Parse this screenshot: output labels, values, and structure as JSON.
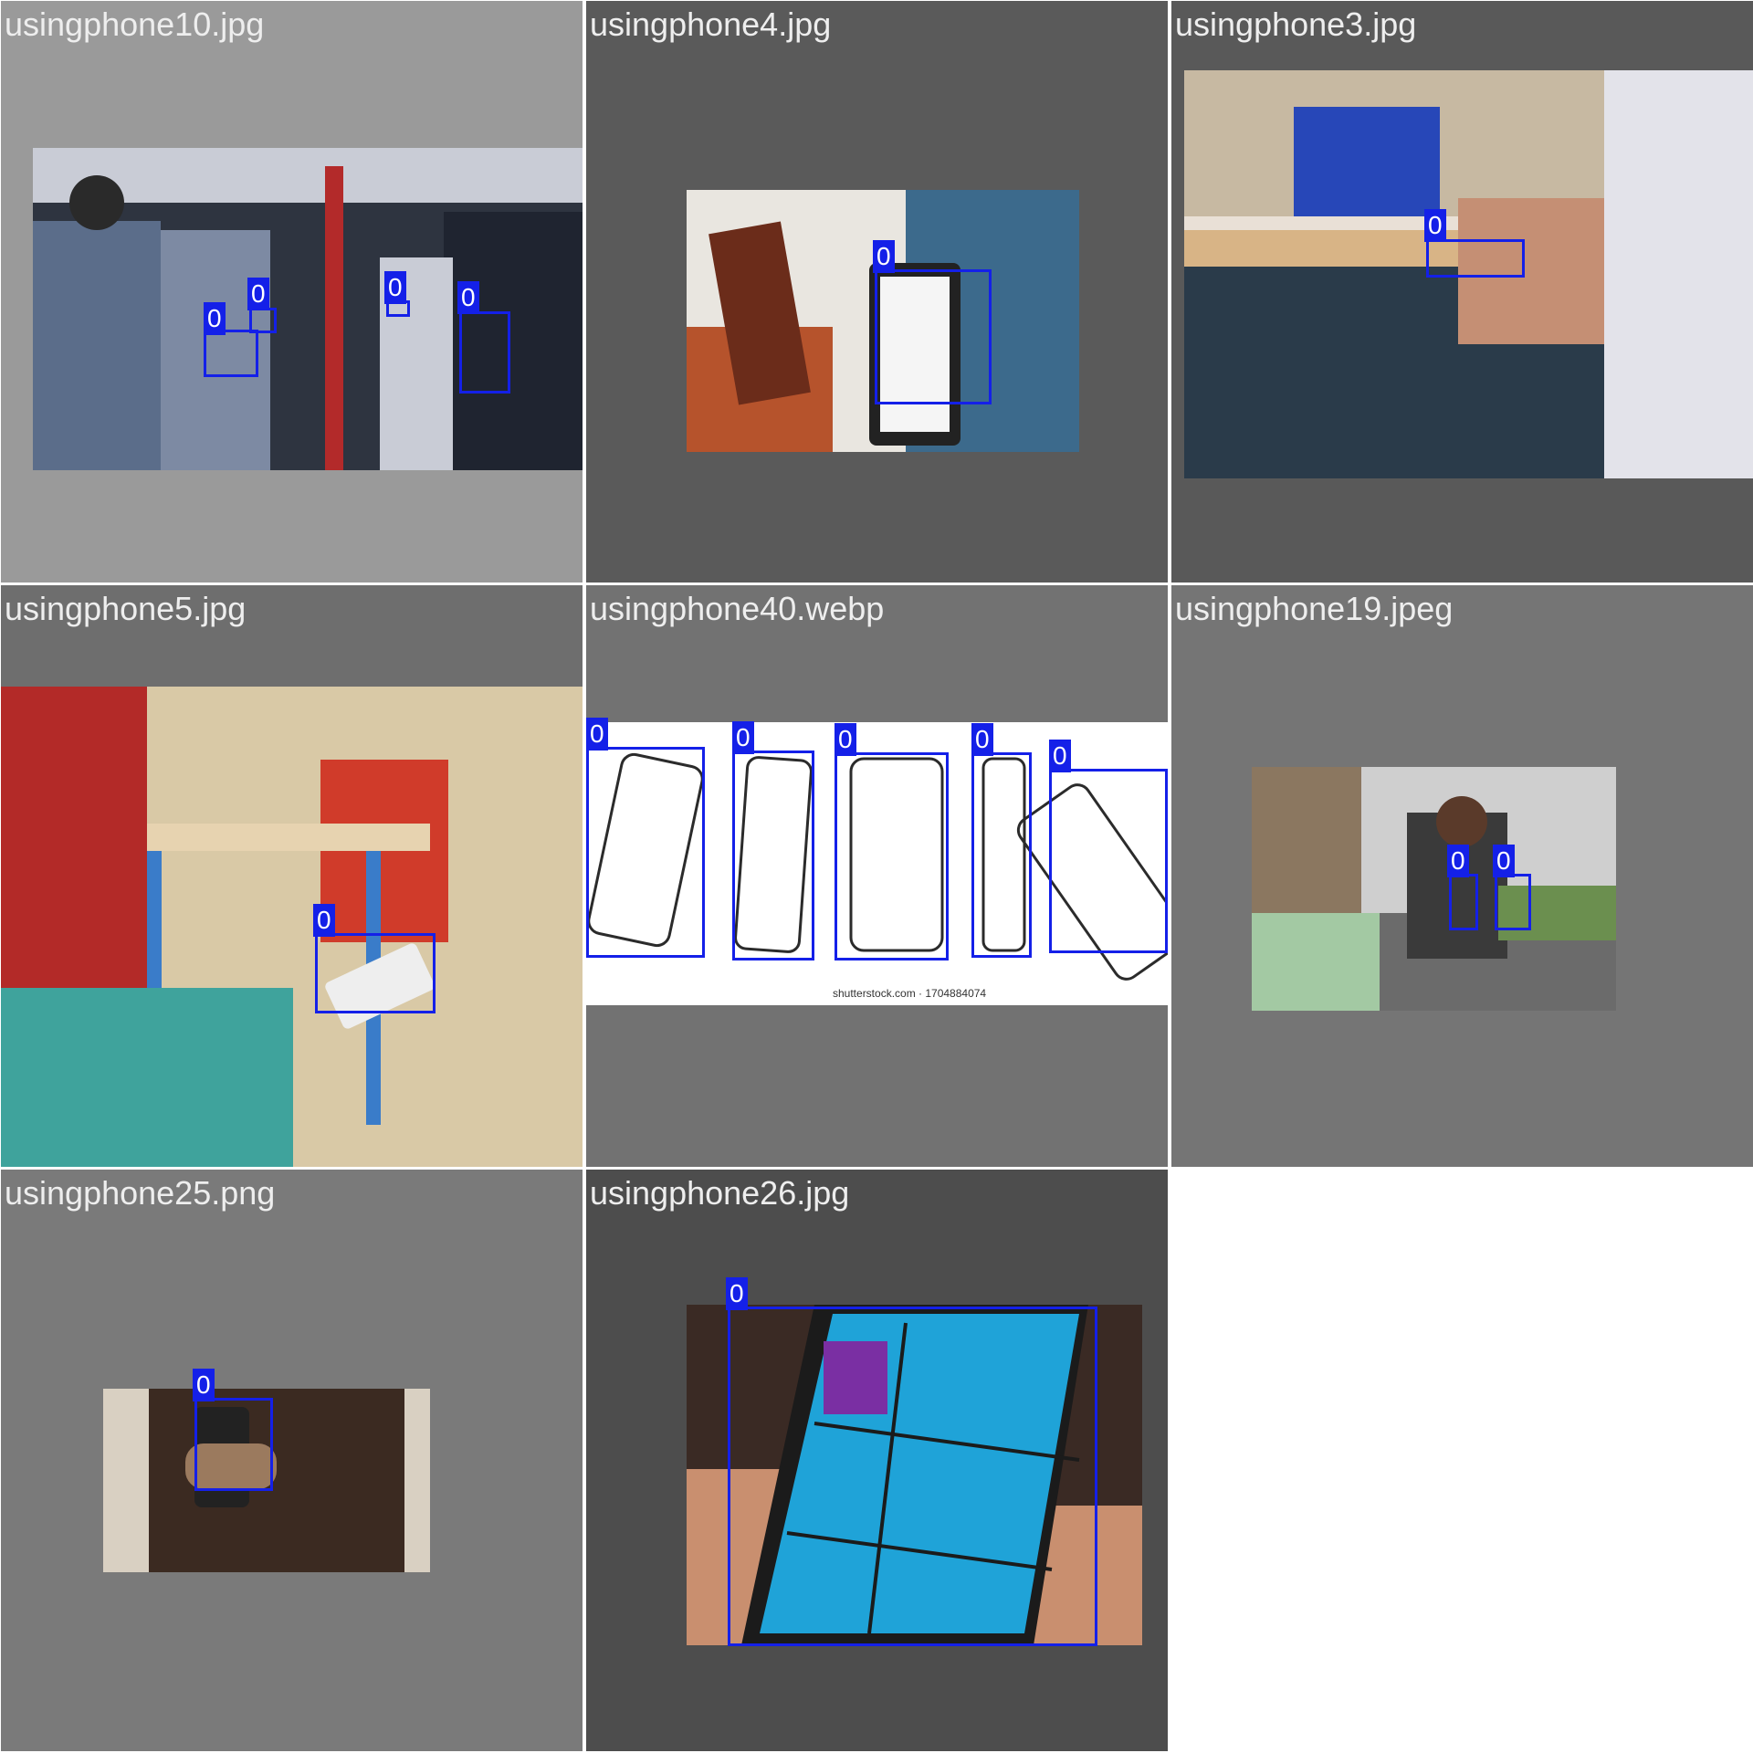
{
  "tiles": [
    {
      "filename": "usingphone10.jpg",
      "bg": "#9a9a9a",
      "label": "0",
      "box_count": 4,
      "photo_colors": [
        "#2e3440",
        "#5b6d8a",
        "#c9ccd6",
        "#7a1a1a"
      ]
    },
    {
      "filename": "usingphone4.jpg",
      "bg": "#5a5a5a",
      "label": "0",
      "box_count": 1,
      "photo_colors": [
        "#e9e6e0",
        "#b6532c",
        "#6b2c1a",
        "#3c6a8c"
      ]
    },
    {
      "filename": "usingphone3.jpg",
      "bg": "#595959",
      "label": "0",
      "box_count": 1,
      "photo_colors": [
        "#c7b9a2",
        "#2a3b4a",
        "#c58f74",
        "#e9e0d6"
      ]
    },
    {
      "filename": "usingphone5.jpg",
      "bg": "#6e6e6e",
      "label": "0",
      "box_count": 1,
      "photo_colors": [
        "#b32a28",
        "#d9c9a6",
        "#3a7cc9",
        "#3fa39c"
      ]
    },
    {
      "filename": "usingphone40.webp",
      "bg": "#727272",
      "label": "0",
      "box_count": 5,
      "photo_colors": [
        "#ffffff",
        "#f2f2f2",
        "#2b2b2b"
      ],
      "watermark": "shutterstock.com · 1704884074"
    },
    {
      "filename": "usingphone19.jpeg",
      "bg": "#757575",
      "label": "0",
      "box_count": 2,
      "photo_colors": [
        "#cfcfcf",
        "#6b8f4f",
        "#3a3a3a",
        "#a3c9a3"
      ]
    },
    {
      "filename": "usingphone25.png",
      "bg": "#7a7a7a",
      "label": "0",
      "box_count": 1,
      "photo_colors": [
        "#d9d0c2",
        "#3b2a21",
        "#9b7a5e"
      ]
    },
    {
      "filename": "usingphone26.jpg",
      "bg": "#4d4d4d",
      "label": "0",
      "box_count": 1,
      "photo_colors": [
        "#1fa3d8",
        "#1b1b1b",
        "#c98f6f",
        "#7a2fa3"
      ]
    }
  ],
  "colors": {
    "bbox": "#1420e8",
    "bbox_text": "#ffffff",
    "title_text": "#eeeeee",
    "empty_cell": "#ffffff"
  }
}
